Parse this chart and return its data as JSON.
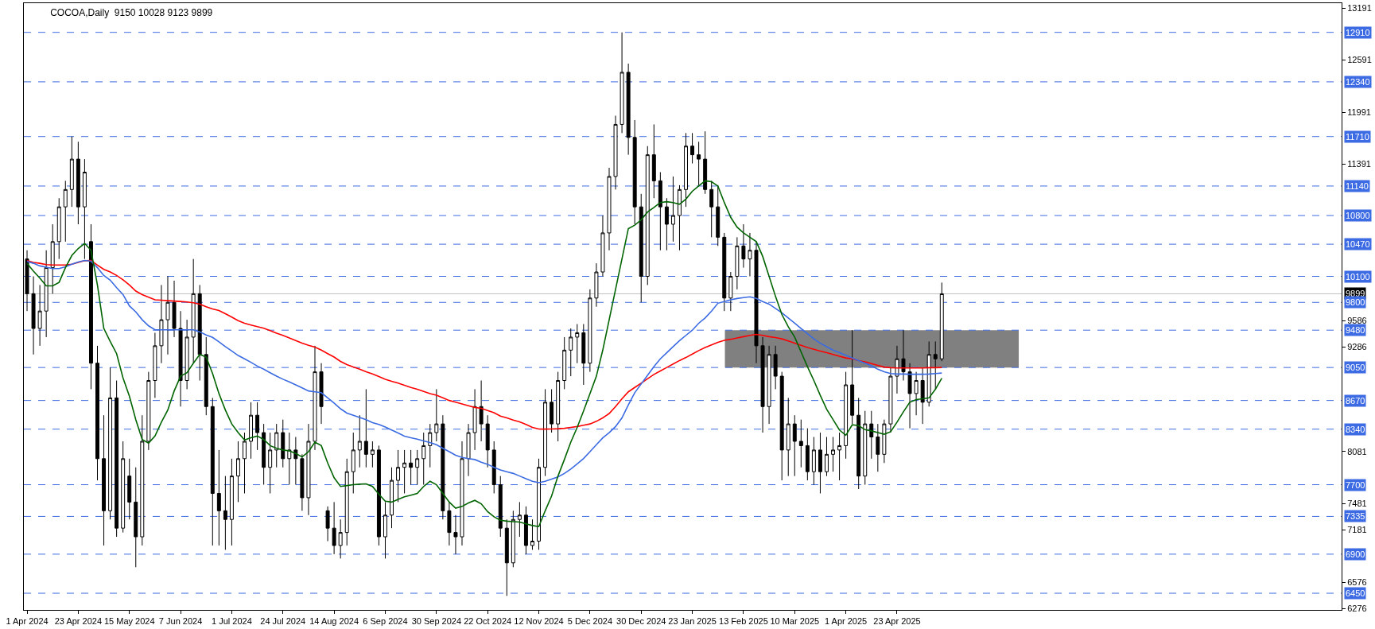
{
  "chart_data": {
    "type": "candlestick",
    "title": "COCOA,Daily  9150 10028 9123 9899",
    "categories": [
      "1 Apr 2024",
      null,
      null,
      null,
      null,
      null,
      null,
      null,
      "23 Apr 2024",
      null,
      null,
      null,
      null,
      null,
      null,
      null,
      "15 May 2024",
      null,
      null,
      null,
      null,
      null,
      null,
      null,
      "7 Jun 2024",
      null,
      null,
      null,
      null,
      null,
      null,
      null,
      "1 Jul 2024",
      null,
      null,
      null,
      null,
      null,
      null,
      null,
      "24 Jul 2024",
      null,
      null,
      null,
      null,
      null,
      null,
      null,
      "14 Aug 2024",
      null,
      null,
      null,
      null,
      null,
      null,
      null,
      "6 Sep 2024",
      null,
      null,
      null,
      null,
      null,
      null,
      null,
      "30 Sep 2024",
      null,
      null,
      null,
      null,
      null,
      null,
      null,
      "22 Oct 2024",
      null,
      null,
      null,
      null,
      null,
      null,
      null,
      "12 Nov 2024",
      null,
      null,
      null,
      null,
      null,
      null,
      null,
      "5 Dec 2024",
      null,
      null,
      null,
      null,
      null,
      null,
      null,
      "30 Dec 2024",
      null,
      null,
      null,
      null,
      null,
      null,
      null,
      "23 Jan 2025",
      null,
      null,
      null,
      null,
      null,
      null,
      null,
      "13 Feb 2025",
      null,
      null,
      null,
      null,
      null,
      null,
      null,
      "10 Mar 2025",
      null,
      null,
      null,
      null,
      null,
      null,
      null,
      "1 Apr 2025",
      null,
      null,
      null,
      null,
      null,
      null,
      null,
      "23 Apr 2025",
      null,
      null,
      null,
      null,
      null,
      null,
      null,
      null,
      null,
      null,
      null,
      null,
      null,
      null,
      null,
      null,
      null,
      null,
      null,
      null,
      null,
      null,
      null,
      null,
      null,
      null,
      null,
      null,
      null,
      null,
      null,
      null,
      null,
      null,
      null,
      null,
      null,
      null,
      null,
      null,
      null,
      null,
      null,
      null,
      null,
      null,
      null,
      null,
      null,
      null,
      null,
      null,
      null,
      null,
      null,
      null,
      null,
      null,
      null,
      null,
      null,
      null,
      null,
      null,
      null,
      null,
      null,
      null,
      null
    ],
    "ohlc": [
      [
        10300,
        10400,
        9700,
        9900
      ],
      [
        9900,
        10100,
        9200,
        9500
      ],
      [
        9500,
        10000,
        9300,
        9700
      ],
      [
        9700,
        10400,
        9400,
        10200
      ],
      [
        10200,
        10700,
        9900,
        10500
      ],
      [
        10500,
        11000,
        10300,
        10900
      ],
      [
        10900,
        11200,
        10500,
        11100
      ],
      [
        11100,
        11710,
        10900,
        11450
      ],
      [
        11450,
        11650,
        10700,
        10900
      ],
      [
        10900,
        11450,
        10300,
        11300
      ],
      [
        10500,
        10700,
        8800,
        9100
      ],
      [
        9100,
        9300,
        7750,
        8000
      ],
      [
        8000,
        8500,
        7000,
        7400
      ],
      [
        7400,
        9050,
        7300,
        8700
      ],
      [
        8700,
        8900,
        7100,
        7200
      ],
      [
        7200,
        8200,
        7150,
        8000
      ],
      [
        7800,
        8000,
        7300,
        7500
      ],
      [
        7500,
        7900,
        6750,
        7100
      ],
      [
        7100,
        8500,
        7000,
        8200
      ],
      [
        8200,
        9000,
        8100,
        8900
      ],
      [
        8900,
        9450,
        8700,
        9300
      ],
      [
        9300,
        10000,
        9100,
        9600
      ],
      [
        9600,
        10100,
        9200,
        9800
      ],
      [
        9800,
        10050,
        9400,
        9500
      ],
      [
        9500,
        9700,
        8600,
        8900
      ],
      [
        8900,
        9600,
        8800,
        9400
      ],
      [
        9400,
        10300,
        9100,
        9900
      ],
      [
        9900,
        10000,
        8900,
        9200
      ],
      [
        9200,
        9400,
        8500,
        8600
      ],
      [
        8600,
        8700,
        7000,
        7600
      ],
      [
        7600,
        8100,
        7000,
        7400
      ],
      [
        7400,
        7800,
        6950,
        7300
      ],
      [
        7300,
        8000,
        7000,
        7800
      ],
      [
        7800,
        8200,
        7500,
        8000
      ],
      [
        8000,
        8300,
        7600,
        8200
      ],
      [
        8200,
        8650,
        8000,
        8500
      ],
      [
        8500,
        8650,
        8100,
        8300
      ],
      [
        8300,
        8400,
        7700,
        7900
      ],
      [
        7900,
        8300,
        7600,
        8100
      ],
      [
        8100,
        8400,
        7900,
        8300
      ],
      [
        8300,
        8450,
        7900,
        8000
      ],
      [
        8000,
        8300,
        7700,
        8100
      ],
      [
        8100,
        8250,
        7700,
        8000
      ],
      [
        8000,
        8050,
        7400,
        7550
      ],
      [
        7550,
        8400,
        7350,
        8200
      ],
      [
        8200,
        9300,
        8100,
        9000
      ],
      [
        9000,
        9100,
        8400,
        8600
      ],
      [
        7400,
        7450,
        7050,
        7200
      ],
      [
        7200,
        7500,
        6900,
        7000
      ],
      [
        7000,
        7300,
        6850,
        7150
      ],
      [
        7150,
        8000,
        7000,
        7850
      ],
      [
        7850,
        8300,
        7600,
        8100
      ],
      [
        8100,
        8500,
        7900,
        8200
      ],
      [
        8200,
        8800,
        7900,
        8050
      ],
      [
        8050,
        8200,
        7900,
        8100
      ],
      [
        8100,
        8150,
        7000,
        7100
      ],
      [
        7100,
        7500,
        6850,
        7350
      ],
      [
        7350,
        7900,
        7200,
        7750
      ],
      [
        7750,
        8100,
        7500,
        7900
      ],
      [
        7900,
        8100,
        7600,
        7950
      ],
      [
        7950,
        8100,
        7700,
        7900
      ],
      [
        7900,
        8100,
        7700,
        8000
      ],
      [
        8000,
        8300,
        7700,
        8150
      ],
      [
        8150,
        8400,
        7900,
        8300
      ],
      [
        8300,
        8800,
        8200,
        8400
      ],
      [
        8400,
        8500,
        7300,
        7400
      ],
      [
        7400,
        7500,
        7000,
        7150
      ],
      [
        7150,
        7350,
        6900,
        7100
      ],
      [
        7100,
        8200,
        7000,
        8000
      ],
      [
        8000,
        8400,
        7800,
        8300
      ],
      [
        8300,
        8800,
        8100,
        8600
      ],
      [
        8600,
        8900,
        8200,
        8400
      ],
      [
        8400,
        8500,
        7900,
        8100
      ],
      [
        8100,
        8200,
        7600,
        7700
      ],
      [
        7700,
        7800,
        7100,
        7200
      ],
      [
        7200,
        7300,
        6420,
        6800
      ],
      [
        6800,
        7400,
        6750,
        7300
      ],
      [
        7300,
        7500,
        7100,
        7350
      ],
      [
        7350,
        7450,
        6900,
        7000
      ],
      [
        7000,
        7300,
        6950,
        7050
      ],
      [
        7050,
        8000,
        6950,
        7900
      ],
      [
        7900,
        8800,
        7800,
        8650
      ],
      [
        8650,
        8800,
        8300,
        8400
      ],
      [
        8400,
        9000,
        8200,
        8900
      ],
      [
        8900,
        9400,
        8800,
        9250
      ],
      [
        9250,
        9500,
        8950,
        9400
      ],
      [
        9400,
        9550,
        9100,
        9450
      ],
      [
        9450,
        9550,
        8850,
        9100
      ],
      [
        9100,
        9950,
        9000,
        9850
      ],
      [
        9850,
        10250,
        9750,
        10150
      ],
      [
        10150,
        10800,
        10100,
        10600
      ],
      [
        10600,
        11350,
        10400,
        11250
      ],
      [
        11250,
        11950,
        11100,
        11850
      ],
      [
        11850,
        12910,
        11750,
        12450
      ],
      [
        12450,
        12550,
        11500,
        11700
      ],
      [
        11700,
        11900,
        10700,
        10900
      ],
      [
        10900,
        11050,
        9800,
        10100
      ],
      [
        10100,
        11600,
        10000,
        11500
      ],
      [
        11500,
        11850,
        11000,
        11200
      ],
      [
        11200,
        11300,
        10400,
        10900
      ],
      [
        10900,
        11000,
        10400,
        10700
      ],
      [
        10700,
        11250,
        10500,
        10800
      ],
      [
        10800,
        11150,
        10400,
        11100
      ],
      [
        11100,
        11750,
        10900,
        11600
      ],
      [
        11600,
        11750,
        11400,
        11500
      ],
      [
        11500,
        11650,
        11150,
        11450
      ],
      [
        11450,
        11770,
        11050,
        11100
      ],
      [
        11100,
        11200,
        10550,
        10900
      ],
      [
        10900,
        11150,
        10450,
        10550
      ],
      [
        10550,
        10600,
        9700,
        9850
      ],
      [
        9850,
        10150,
        9700,
        10100
      ],
      [
        10100,
        10550,
        9950,
        10450
      ],
      [
        10450,
        10700,
        10200,
        10300
      ],
      [
        10300,
        10600,
        10100,
        10400
      ],
      [
        10400,
        10500,
        9100,
        9300
      ],
      [
        9300,
        9400,
        8300,
        8600
      ],
      [
        8600,
        9300,
        8400,
        9200
      ],
      [
        9200,
        9300,
        8800,
        8950
      ],
      [
        8950,
        9000,
        7750,
        8100
      ],
      [
        8100,
        8700,
        7800,
        8400
      ],
      [
        8400,
        8500,
        7800,
        8200
      ],
      [
        8200,
        8450,
        7900,
        8150
      ],
      [
        8150,
        8350,
        7750,
        7850
      ],
      [
        7850,
        8250,
        7700,
        8100
      ],
      [
        8100,
        8300,
        7600,
        7850
      ],
      [
        7850,
        8250,
        7800,
        8050
      ],
      [
        8050,
        8250,
        7850,
        8100
      ],
      [
        8100,
        8300,
        7750,
        8150
      ],
      [
        8150,
        9000,
        8000,
        8850
      ],
      [
        8850,
        9480,
        8400,
        8500
      ],
      [
        8500,
        8700,
        7650,
        7800
      ],
      [
        7800,
        8550,
        7700,
        8400
      ],
      [
        8400,
        8550,
        8000,
        8250
      ],
      [
        8250,
        8400,
        7850,
        8050
      ],
      [
        8050,
        8450,
        7950,
        8400
      ],
      [
        8400,
        9050,
        8300,
        8950
      ],
      [
        8950,
        9300,
        8750,
        9150
      ],
      [
        9150,
        9480,
        8900,
        9000
      ],
      [
        9000,
        9100,
        8350,
        8750
      ],
      [
        8750,
        9000,
        8500,
        8900
      ],
      [
        8900,
        9050,
        8400,
        8650
      ],
      [
        8650,
        9350,
        8600,
        9200
      ],
      [
        9200,
        9350,
        8800,
        9150
      ],
      [
        9150,
        10028,
        9123,
        9899
      ],
      null,
      null,
      null,
      null,
      null,
      null,
      null,
      null,
      null,
      null,
      null,
      null,
      null,
      null,
      null,
      null,
      null,
      null,
      null,
      null,
      null,
      null,
      null,
      null,
      null,
      null,
      null,
      null,
      null,
      null,
      null,
      null,
      null,
      null,
      null,
      null,
      null,
      null,
      null,
      null,
      null,
      null,
      null,
      null,
      null,
      null,
      null,
      null,
      null,
      null,
      null,
      null,
      null,
      null,
      null,
      null,
      null,
      null,
      null,
      null,
      null,
      null
    ],
    "series": [
      {
        "type": "line",
        "color": "#ff0000",
        "values": [
          10280,
          10260,
          10250,
          10235,
          10230,
          10230,
          10230,
          10240,
          10260,
          10280,
          10283,
          10230,
          10180,
          10150,
          10110,
          10060,
          10000,
          9930,
          9890,
          9860,
          9830,
          9825,
          9820,
          9815,
          9810,
          9805,
          9795,
          9780,
          9750,
          9725,
          9707,
          9670,
          9630,
          9590,
          9560,
          9540,
          9520,
          9502,
          9475,
          9445,
          9420,
          9390,
          9360,
          9330,
          9305,
          9285,
          9250,
          9210,
          9170,
          9120,
          9083,
          9055,
          9030,
          9000,
          8975,
          8945,
          8915,
          8892,
          8870,
          8845,
          8820,
          8800,
          8775,
          8750,
          8730,
          8700,
          8670,
          8650,
          8630,
          8610,
          8590,
          8580,
          8555,
          8530,
          8490,
          8470,
          8445,
          8425,
          8395,
          8360,
          8341,
          8340,
          8342,
          8345,
          8350,
          8360,
          8370,
          8385,
          8400,
          8430,
          8470,
          8520,
          8600,
          8690,
          8770,
          8820,
          8870,
          8920,
          8970,
          9010,
          9050,
          9090,
          9130,
          9165,
          9205,
          9245,
          9280,
          9310,
          9340,
          9362,
          9375,
          9390,
          9405,
          9420,
          9432,
          9420,
          9405,
          9395,
          9380,
          9355,
          9330,
          9305,
          9280,
          9260,
          9240,
          9220,
          9200,
          9180,
          9160,
          9150,
          9130,
          9115,
          9095,
          9075,
          9055,
          9048,
          9045,
          9045,
          9045,
          9045,
          9045,
          9048,
          9048,
          9050,
          null,
          null,
          null,
          null,
          null,
          null,
          null,
          null,
          null,
          null,
          null,
          null,
          null,
          null,
          null,
          null,
          null,
          null,
          null,
          null,
          null,
          null,
          null,
          null,
          null,
          null,
          null,
          null,
          null,
          null,
          null,
          null,
          null,
          null,
          null,
          null,
          null,
          null,
          null,
          null,
          null,
          null,
          null,
          null,
          null,
          null,
          null,
          null,
          null,
          null,
          null,
          null,
          null,
          null,
          null,
          null,
          null,
          null,
          null,
          null,
          null,
          null
        ]
      },
      {
        "type": "line",
        "color": "#3b6be3",
        "values": [
          10272,
          10250,
          10220,
          10205,
          10190,
          10190,
          10210,
          10240,
          10265,
          10283,
          10275,
          10200,
          10110,
          10056,
          9970,
          9890,
          9760,
          9690,
          9600,
          9530,
          9484,
          9484,
          9484,
          9484,
          9484,
          9484,
          9484,
          9460,
          9425,
          9397,
          9345,
          9290,
          9240,
          9188,
          9150,
          9110,
          9066,
          9030,
          8990,
          8950,
          8915,
          8885,
          8850,
          8815,
          8780,
          8770,
          8760,
          8700,
          8640,
          8575,
          8525,
          8500,
          8475,
          8450,
          8415,
          8395,
          8365,
          8330,
          8295,
          8260,
          8240,
          8225,
          8205,
          8185,
          8160,
          8120,
          8080,
          8040,
          8015,
          8000,
          7990,
          7960,
          7935,
          7900,
          7870,
          7850,
          7830,
          7800,
          7770,
          7740,
          7723,
          7740,
          7765,
          7790,
          7830,
          7880,
          7940,
          8002,
          8080,
          8160,
          8240,
          8300,
          8370,
          8470,
          8620,
          8760,
          8860,
          8960,
          9060,
          9150,
          9220,
          9290,
          9360,
          9420,
          9480,
          9560,
          9620,
          9700,
          9790,
          9810,
          9830,
          9845,
          9855,
          9864,
          9845,
          9810,
          9780,
          9730,
          9680,
          9620,
          9560,
          9500,
          9440,
          9380,
          9330,
          9290,
          9250,
          9220,
          9190,
          9160,
          9130,
          9100,
          9070,
          9030,
          9000,
          8980,
          8975,
          8975,
          8972,
          8972,
          8972,
          8975,
          8980,
          8986,
          null,
          null,
          null,
          null,
          null,
          null,
          null,
          null,
          null,
          null,
          null,
          null,
          null,
          null,
          null,
          null,
          null,
          null,
          null,
          null,
          null,
          null,
          null,
          null,
          null,
          null,
          null,
          null,
          null,
          null,
          null,
          null,
          null,
          null,
          null,
          null,
          null,
          null,
          null,
          null,
          null,
          null,
          null,
          null,
          null,
          null,
          null,
          null,
          null,
          null,
          null,
          null,
          null,
          null,
          null,
          null,
          null,
          null,
          null,
          null,
          null,
          null
        ]
      },
      {
        "type": "line",
        "color": "#006400",
        "values": [
          10248,
          10160,
          10080,
          9990,
          9990,
          10030,
          10200,
          10340,
          10420,
          10480,
          10400,
          10000,
          9500,
          9350,
          9210,
          8930,
          8720,
          8450,
          8220,
          8180,
          8260,
          8420,
          8560,
          8780,
          8950,
          8990,
          9100,
          9200,
          9170,
          8980,
          8750,
          8560,
          8400,
          8300,
          8215,
          8240,
          8260,
          8220,
          8150,
          8120,
          8100,
          8090,
          8060,
          8020,
          8080,
          8190,
          8150,
          7950,
          7780,
          7680,
          7690,
          7700,
          7706,
          7710,
          7680,
          7590,
          7510,
          7500,
          7530,
          7560,
          7580,
          7600,
          7680,
          7740,
          7700,
          7600,
          7500,
          7430,
          7450,
          7490,
          7520,
          7480,
          7390,
          7330,
          7290,
          7280,
          7275,
          7270,
          7250,
          7230,
          7218,
          7400,
          7570,
          7800,
          7990,
          8190,
          8360,
          8550,
          8750,
          8950,
          9250,
          9600,
          9950,
          10300,
          10650,
          10690,
          10750,
          10840,
          10893,
          10950,
          10960,
          10950,
          10930,
          10990,
          11080,
          11140,
          11200,
          11190,
          11140,
          10950,
          10780,
          10666,
          10600,
          10550,
          10500,
          10330,
          10100,
          9870,
          9660,
          9520,
          9400,
          9230,
          9060,
          8900,
          8730,
          8570,
          8450,
          8330,
          8270,
          8390,
          8380,
          8334,
          8320,
          8300,
          8281,
          8310,
          8420,
          8540,
          8650,
          8680,
          8690,
          8700,
          8800,
          8926,
          null,
          null,
          null,
          null,
          null,
          null,
          null,
          null,
          null,
          null,
          null,
          null,
          null,
          null,
          null,
          null,
          null,
          null,
          null,
          null,
          null,
          null,
          null,
          null,
          null,
          null,
          null,
          null,
          null,
          null,
          null,
          null,
          null,
          null,
          null,
          null,
          null,
          null,
          null,
          null,
          null,
          null,
          null,
          null,
          null,
          null,
          null,
          null,
          null,
          null,
          null,
          null,
          null,
          null,
          null,
          null,
          null,
          null,
          null,
          null,
          null,
          null
        ]
      }
    ],
    "ylim": [
      6258,
      13246
    ],
    "yticks": [
      6276,
      6576,
      7181,
      7481,
      8081,
      9286,
      9586,
      11391,
      11991,
      12591,
      13191
    ],
    "ref_lines": [
      {
        "axis": "y",
        "value": 12910,
        "label": "12910",
        "color": "#3d6be3",
        "line_style": "dashed"
      },
      {
        "axis": "y",
        "value": 12340,
        "label": "12340",
        "color": "#3d6be3",
        "line_style": "dashed"
      },
      {
        "axis": "y",
        "value": 11710,
        "label": "11710",
        "color": "#3d6be3",
        "line_style": "dashed"
      },
      {
        "axis": "y",
        "value": 11140,
        "label": "11140",
        "color": "#3d6be3",
        "line_style": "dashed"
      },
      {
        "axis": "y",
        "value": 10800,
        "label": "10800",
        "color": "#3d6be3",
        "line_style": "dashed"
      },
      {
        "axis": "y",
        "value": 10470,
        "label": "10470",
        "color": "#3d6be3",
        "line_style": "dashed"
      },
      {
        "axis": "y",
        "value": 10100,
        "label": "10100",
        "color": "#3d6be3",
        "line_style": "dashed"
      },
      {
        "axis": "y",
        "value": 9899,
        "label": "9899",
        "color": "#c0c0c0",
        "line_style": "solid"
      },
      {
        "axis": "y",
        "value": 9800,
        "label": "9800",
        "color": "#3d6be3",
        "line_style": "dashed"
      },
      {
        "axis": "y",
        "value": 9480,
        "label": "9480",
        "color": "#3d6be3",
        "line_style": "dashed"
      },
      {
        "axis": "y",
        "value": 9050,
        "label": "9050",
        "color": "#3d6be3",
        "line_style": "dashed"
      },
      {
        "axis": "y",
        "value": 8670,
        "label": "8670",
        "color": "#3d6be3",
        "line_style": "dashed"
      },
      {
        "axis": "y",
        "value": 8340,
        "label": "8340",
        "color": "#3d6be3",
        "line_style": "dashed"
      },
      {
        "axis": "y",
        "value": 7700,
        "label": "7700",
        "color": "#3d6be3",
        "line_style": "dashed"
      },
      {
        "axis": "y",
        "value": 7335,
        "label": "7335",
        "color": "#3d6be3",
        "line_style": "dashed"
      },
      {
        "axis": "y",
        "value": 6900,
        "label": "6900",
        "color": "#3d6be3",
        "line_style": "dashed"
      },
      {
        "axis": "y",
        "value": 6450,
        "label": "6450",
        "color": "#3d6be3",
        "line_style": "dashed"
      }
    ],
    "bands": [
      {
        "axis": "y",
        "from": 9050,
        "to": 9480,
        "color": "#808080"
      }
    ],
    "grid": false
  }
}
